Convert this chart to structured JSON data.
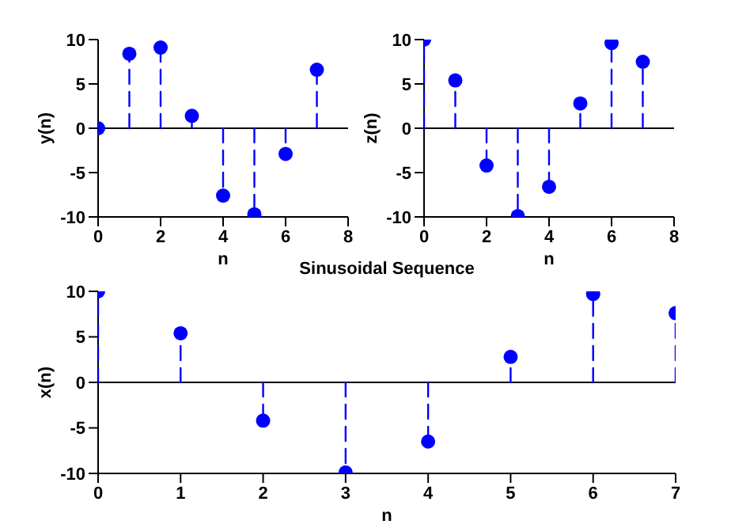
{
  "chart_data": [
    {
      "type": "lollipop",
      "xlabel": "n",
      "ylabel": "y(n)",
      "x": [
        0,
        1,
        2,
        3,
        4,
        5,
        6,
        7
      ],
      "values": [
        0,
        8.4,
        9.1,
        1.4,
        -7.6,
        -9.7,
        -2.9,
        6.6
      ],
      "color": "#0000ff",
      "xlim": [
        0,
        8
      ],
      "xticks": [
        0,
        2,
        4,
        6,
        8
      ],
      "ylim": [
        -10,
        10
      ],
      "yticks": [
        -10,
        -5,
        0,
        5,
        10
      ],
      "marker": "circle",
      "line_style": "dashed",
      "ref_lines": [
        {
          "axis": "y",
          "value": 0,
          "color": "#000000"
        }
      ]
    },
    {
      "type": "lollipop",
      "xlabel": "n",
      "ylabel": "z(n)",
      "x": [
        0,
        1,
        2,
        3,
        4,
        5,
        6,
        7
      ],
      "values": [
        10,
        5.4,
        -4.2,
        -9.9,
        -6.6,
        2.8,
        9.6,
        7.5
      ],
      "color": "#0000ff",
      "xlim": [
        0,
        8
      ],
      "xticks": [
        0,
        2,
        4,
        6,
        8
      ],
      "ylim": [
        -10,
        10
      ],
      "yticks": [
        -10,
        -5,
        0,
        5,
        10
      ],
      "marker": "circle",
      "line_style": "dashed",
      "ref_lines": [
        {
          "axis": "y",
          "value": 0,
          "color": "#000000"
        }
      ]
    },
    {
      "type": "lollipop",
      "title": "Sinusoidal Sequence",
      "xlabel": "n",
      "ylabel": "x(n)",
      "x": [
        0,
        1,
        2,
        3,
        4,
        5,
        6,
        7
      ],
      "values": [
        10,
        5.4,
        -4.2,
        -9.9,
        -6.5,
        2.8,
        9.7,
        7.6
      ],
      "color": "#0000ff",
      "xlim": [
        0,
        7
      ],
      "xticks": [
        0,
        1,
        2,
        3,
        4,
        5,
        6,
        7
      ],
      "ylim": [
        -10,
        10
      ],
      "yticks": [
        -10,
        -5,
        0,
        5,
        10
      ],
      "marker": "circle",
      "line_style": "dashed",
      "ref_lines": [
        {
          "axis": "y",
          "value": 0,
          "color": "#000000"
        }
      ]
    }
  ]
}
